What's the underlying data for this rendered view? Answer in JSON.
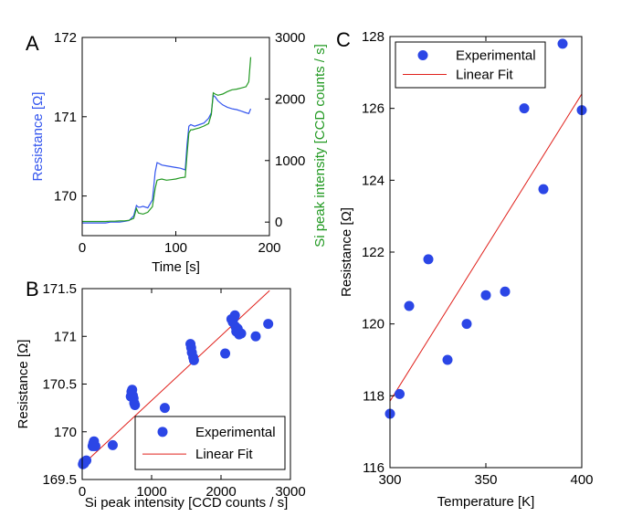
{
  "chart_data": [
    {
      "panel": "A",
      "type": "line",
      "xlabel": "Time [s]",
      "ylabel_left": "Resistance [Ω]",
      "ylabel_right": "Si peak intensity [CCD counts / s]",
      "xlim": [
        0,
        200
      ],
      "ylim_left": [
        169.5,
        172
      ],
      "ylim_right": [
        -220,
        3000
      ],
      "xticks": [
        "0",
        "100",
        "200"
      ],
      "yticks_left": [
        "170",
        "171",
        "172"
      ],
      "yticks_right": [
        "0",
        "1000",
        "2000",
        "3000"
      ],
      "colors": {
        "left": "#3355ee",
        "right": "#229922"
      },
      "series": [
        {
          "name": "Resistance",
          "axis": "left",
          "x": [
            0,
            5,
            10,
            15,
            20,
            25,
            30,
            35,
            40,
            45,
            50,
            55,
            58,
            60,
            62,
            65,
            70,
            75,
            78,
            80,
            82,
            85,
            90,
            95,
            100,
            105,
            110,
            112,
            114,
            116,
            118,
            120,
            125,
            130,
            135,
            138,
            140,
            142,
            145,
            150,
            155,
            160,
            165,
            170,
            175,
            178,
            180
          ],
          "values": [
            169.66,
            169.66,
            169.66,
            169.66,
            169.66,
            169.66,
            169.67,
            169.67,
            169.67,
            169.68,
            169.69,
            169.75,
            169.88,
            169.86,
            169.86,
            169.87,
            169.85,
            169.95,
            170.3,
            170.42,
            170.41,
            170.39,
            170.38,
            170.37,
            170.36,
            170.35,
            170.33,
            170.65,
            170.88,
            170.9,
            170.89,
            170.88,
            170.9,
            170.92,
            170.98,
            171.05,
            171.27,
            171.25,
            171.2,
            171.15,
            171.12,
            171.1,
            171.09,
            171.07,
            171.05,
            171.04,
            171.1
          ]
        },
        {
          "name": "Si peak intensity",
          "axis": "right",
          "x": [
            0,
            5,
            10,
            15,
            20,
            25,
            30,
            35,
            40,
            45,
            50,
            55,
            58,
            60,
            62,
            65,
            70,
            75,
            78,
            80,
            82,
            85,
            90,
            95,
            100,
            105,
            110,
            112,
            114,
            116,
            118,
            120,
            125,
            130,
            135,
            138,
            140,
            142,
            145,
            150,
            155,
            160,
            165,
            170,
            175,
            178,
            180
          ],
          "values": [
            10,
            10,
            10,
            10,
            10,
            10,
            15,
            15,
            20,
            20,
            30,
            60,
            220,
            150,
            140,
            130,
            160,
            250,
            550,
            680,
            690,
            700,
            680,
            690,
            700,
            720,
            730,
            1100,
            1450,
            1500,
            1500,
            1510,
            1530,
            1560,
            1600,
            1750,
            2100,
            2080,
            2060,
            2080,
            2120,
            2150,
            2160,
            2180,
            2200,
            2280,
            2680
          ]
        }
      ]
    },
    {
      "panel": "B",
      "type": "scatter",
      "xlabel": "Si peak intensity [CCD counts / s]",
      "ylabel": "Resistance [Ω]",
      "xlim": [
        0,
        3000
      ],
      "ylim": [
        169.5,
        171.5
      ],
      "xticks": [
        "0",
        "1000",
        "2000",
        "3000"
      ],
      "yticks": [
        "169.5",
        "170",
        "170.5",
        "171",
        "171.5"
      ],
      "legend": [
        "Experimental",
        "Linear Fit"
      ],
      "legend_position": "bottom-right",
      "colors": {
        "points": "#2b46e6",
        "fit": "#e0201b"
      },
      "series": [
        {
          "name": "Experimental",
          "x": [
            10,
            20,
            30,
            60,
            150,
            160,
            170,
            190,
            440,
            700,
            710,
            720,
            730,
            740,
            750,
            760,
            1190,
            1560,
            1570,
            1580,
            1600,
            1610,
            2060,
            2150,
            2170,
            2190,
            2200,
            2210,
            2220,
            2240,
            2250,
            2260,
            2290,
            2500,
            2680
          ],
          "y": [
            169.66,
            169.68,
            169.67,
            169.7,
            169.85,
            169.88,
            169.9,
            169.85,
            169.86,
            170.37,
            170.42,
            170.44,
            170.38,
            170.35,
            170.3,
            170.28,
            170.25,
            170.92,
            170.88,
            170.83,
            170.78,
            170.75,
            170.82,
            171.18,
            171.15,
            171.2,
            171.22,
            171.1,
            171.05,
            171.08,
            171.05,
            171.02,
            171.03,
            171.0,
            171.13
          ]
        },
        {
          "name": "Linear Fit",
          "x": [
            0,
            2700
          ],
          "y": [
            169.65,
            171.48
          ]
        }
      ]
    },
    {
      "panel": "C",
      "type": "scatter",
      "xlabel": "Temperature [K]",
      "ylabel": "Resistance [Ω]",
      "xlim": [
        300,
        400
      ],
      "ylim": [
        116,
        128
      ],
      "xticks": [
        "300",
        "350",
        "400"
      ],
      "yticks": [
        "116",
        "118",
        "120",
        "122",
        "124",
        "126",
        "128"
      ],
      "legend": [
        "Experimental",
        "Linear Fit"
      ],
      "legend_position": "top-left",
      "colors": {
        "points": "#2b46e6",
        "fit": "#e0201b"
      },
      "series": [
        {
          "name": "Experimental",
          "x": [
            300,
            305,
            310,
            320,
            330,
            340,
            350,
            360,
            370,
            380,
            390,
            400
          ],
          "y": [
            117.5,
            118.05,
            120.5,
            121.8,
            119.0,
            120.0,
            120.8,
            120.9,
            126.0,
            123.75,
            127.8,
            125.95
          ]
        },
        {
          "name": "Linear Fit",
          "x": [
            300,
            400
          ],
          "y": [
            117.85,
            126.4
          ]
        }
      ]
    }
  ]
}
